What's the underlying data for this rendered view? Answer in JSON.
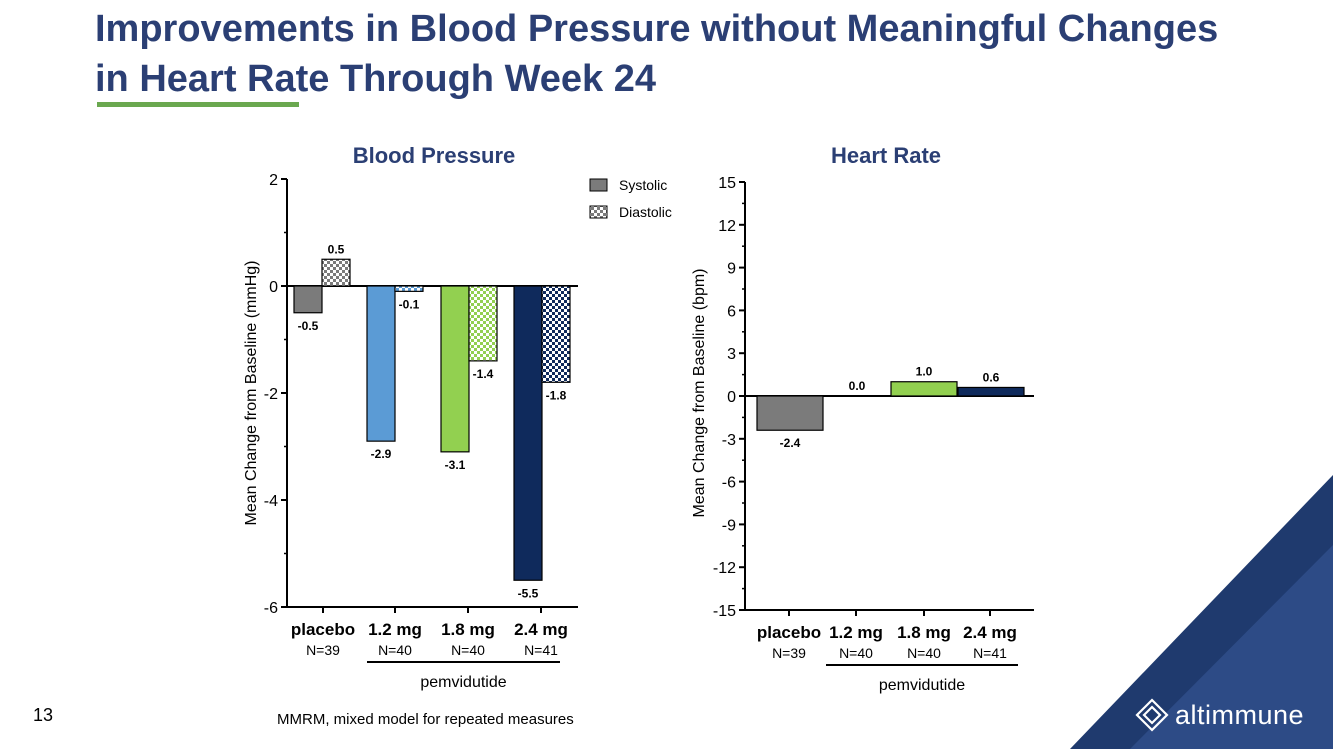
{
  "slide": {
    "title": "Improvements in Blood Pressure without Meaningful Changes in Heart Rate Through Week 24",
    "slide_number": "13",
    "footnote": "MMRM, mixed model for repeated measures",
    "logo_text": "altimmune",
    "colors": {
      "title": "#2b3f74",
      "accent_green": "#6aa84f",
      "corner_dark": "#1f3a6e",
      "corner_light": "#3d5a98"
    }
  },
  "chart_data": [
    {
      "type": "bar",
      "title": "Blood Pressure",
      "ylabel": "Mean Change from Baseline (mmHg)",
      "ylim": [
        -6,
        2
      ],
      "yticks": [
        2,
        0,
        -2,
        -4,
        -6
      ],
      "categories": [
        "placebo",
        "1.2 mg",
        "1.8 mg",
        "2.4 mg"
      ],
      "n_labels": [
        "N=39",
        "N=40",
        "N=40",
        "N=41"
      ],
      "group_label": "pemvidutide",
      "legend": [
        "Systolic",
        "Diastolic"
      ],
      "series": [
        {
          "name": "Systolic",
          "values": [
            -0.5,
            -2.9,
            -3.1,
            -5.5
          ],
          "labels": [
            "-0.5",
            "-2.9",
            "-3.1",
            "-5.5"
          ]
        },
        {
          "name": "Diastolic",
          "values": [
            0.5,
            -0.1,
            -1.4,
            -1.8
          ],
          "labels": [
            "0.5",
            "-0.1",
            "-1.4",
            "-1.8"
          ]
        }
      ],
      "colors": [
        "#7b7b7b",
        "#5b9bd5",
        "#92d050",
        "#0f2a5c"
      ]
    },
    {
      "type": "bar",
      "title": "Heart Rate",
      "ylabel": "Mean Change from Baseline (bpm)",
      "ylim": [
        -15,
        15
      ],
      "yticks": [
        15,
        12,
        9,
        6,
        3,
        0,
        -3,
        -6,
        -9,
        -12,
        -15
      ],
      "categories": [
        "placebo",
        "1.2 mg",
        "1.8 mg",
        "2.4 mg"
      ],
      "n_labels": [
        "N=39",
        "N=40",
        "N=40",
        "N=41"
      ],
      "group_label": "pemvidutide",
      "series": [
        {
          "name": "Heart Rate",
          "values": [
            -2.4,
            0.0,
            1.0,
            0.6
          ],
          "labels": [
            "-2.4",
            "0.0",
            "1.0",
            "0.6"
          ]
        }
      ],
      "colors": [
        "#7b7b7b",
        "#5b9bd5",
        "#92d050",
        "#0f2a5c"
      ]
    }
  ]
}
